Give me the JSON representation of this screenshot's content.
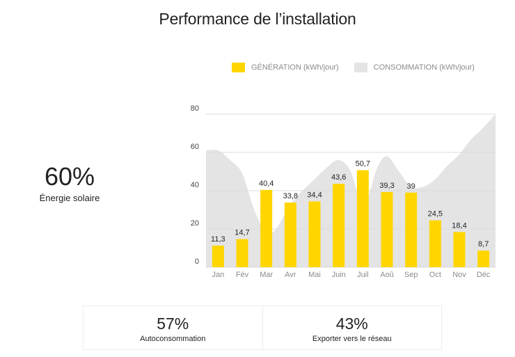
{
  "header": {
    "title": "Performance de l’installation"
  },
  "legend": {
    "generation": {
      "label": "GÉNÉRATION (kWh/jour)",
      "color": "#ffd600"
    },
    "consumption": {
      "label": "CONSOMMATION (kWh/jour)",
      "color": "#e4e4e4"
    }
  },
  "solar_share": {
    "value": "60%",
    "label": "Énergie solaire"
  },
  "kpis": [
    {
      "value": "57%",
      "label": "Autoconsommation"
    },
    {
      "value": "43%",
      "label": "Exporter vers le réseau"
    }
  ],
  "chart_data": {
    "type": "bar",
    "title": "Performance de l’installation",
    "categories": [
      "Jan",
      "Fév",
      "Mar",
      "Avr",
      "Mai",
      "Juin",
      "Juil",
      "Aoû",
      "Sep",
      "Oct",
      "Nov",
      "Déc"
    ],
    "series": [
      {
        "name": "GÉNÉRATION (kWh/jour)",
        "type": "bar",
        "color": "#ffd600",
        "values": [
          11.3,
          14.7,
          40.4,
          33.8,
          34.4,
          43.6,
          50.7,
          39.3,
          39,
          24.5,
          18.4,
          8.7
        ],
        "labels": [
          "11,3",
          "14,7",
          "40,4",
          "33,8",
          "34,4",
          "43,6",
          "50,7",
          "39,3",
          "39",
          "24,5",
          "18,4",
          "8,7"
        ]
      },
      {
        "name": "CONSOMMATION (kWh/jour)",
        "type": "area",
        "color": "#e4e4e4",
        "x": [
          0,
          0.5,
          1,
          1.5,
          2,
          2.4,
          3,
          3.5,
          4,
          4.5,
          5,
          5.5,
          6,
          6.3,
          6.6,
          7,
          7.5,
          8,
          8.5,
          9,
          9.5,
          10,
          10.5,
          11,
          11.5
        ],
        "values": [
          61,
          56,
          49,
          30,
          18,
          20,
          33,
          40,
          46,
          52,
          56,
          50,
          30,
          40,
          52,
          58,
          50,
          42,
          42,
          46,
          53,
          59,
          67,
          73,
          80
        ]
      }
    ],
    "yticks": [
      0,
      20,
      40,
      60,
      80
    ],
    "ylim": [
      0,
      80
    ],
    "grid": true,
    "legend_position": "top"
  }
}
